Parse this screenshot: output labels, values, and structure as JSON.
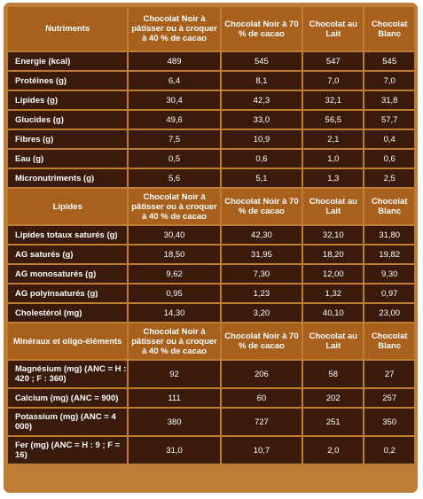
{
  "sections": [
    {
      "title": "Nutriments",
      "columns": [
        "Chocolat Noir à pâtisser ou à croquer à 40 % de cacao",
        "Chocolat Noir à 70 % de cacao",
        "Chocolat au Lait",
        "Chocolat Blanc"
      ],
      "rows": [
        {
          "label": "Energie (kcal)",
          "values": [
            "489",
            "545",
            "547",
            "545"
          ]
        },
        {
          "label": "Protéines (g)",
          "values": [
            "6,4",
            "8,1",
            "7,0",
            "7,0"
          ]
        },
        {
          "label": "Lipides (g)",
          "values": [
            "30,4",
            "42,3",
            "32,1",
            "31,8"
          ]
        },
        {
          "label": "Glucides (g)",
          "values": [
            "49,6",
            "33,0",
            "56,5",
            "57,7"
          ]
        },
        {
          "label": "Fibres (g)",
          "values": [
            "7,5",
            "10,9",
            "2,1",
            "0,4"
          ]
        },
        {
          "label": "Eau (g)",
          "values": [
            "0,5",
            "0,6",
            "1,0",
            "0,6"
          ]
        },
        {
          "label": "Micronutriments (g)",
          "values": [
            "5,6",
            "5,1",
            "1,3",
            "2,5"
          ]
        }
      ]
    },
    {
      "title": "Lipides",
      "columns": [
        "Chocolat Noir à pâtisser ou à croquer à 40 % de cacao",
        "Chocolat Noir à 70 % de cacao",
        "Chocolat au Lait",
        "Chocolat Blanc"
      ],
      "rows": [
        {
          "label": "Lipides totaux saturés (g)",
          "values": [
            "30,40",
            "42,30",
            "32,10",
            "31,80"
          ]
        },
        {
          "label": "AG saturés (g)",
          "values": [
            "18,50",
            "31,95",
            "18,20",
            "19,82"
          ]
        },
        {
          "label": "AG monosaturés (g)",
          "values": [
            "9,62",
            "7,30",
            "12,00",
            "9,30"
          ]
        },
        {
          "label": "AG polyinsaturés (g)",
          "values": [
            "0,95",
            "1,23",
            "1,32",
            "0,97"
          ]
        },
        {
          "label": "Cholestérol (mg)",
          "values": [
            "14,30",
            "3,20",
            "40,10",
            "23,00"
          ]
        }
      ]
    },
    {
      "title": "Minéraux et oligo-éléments",
      "columns": [
        "Chocolat Noir à pâtisser ou à croquer à 40 % de cacao",
        "Chocolat Noir à 70 % de cacao",
        "Chocolat au Lait",
        "Chocolat Blanc"
      ],
      "rows": [
        {
          "label": "Magnésium (mg) (ANC = H : 420 ; F : 360)",
          "values": [
            "92",
            "206",
            "58",
            "27"
          ]
        },
        {
          "label": "Calcium (mg) (ANC = 900)",
          "values": [
            "111",
            "60",
            "202",
            "257"
          ]
        },
        {
          "label": "Potassium (mg) (ANC = 4 000)",
          "values": [
            "380",
            "727",
            "251",
            "350"
          ]
        },
        {
          "label": "Fer (mg) (ANC = H : 9 ; F = 16)",
          "values": [
            "31,0",
            "10,7",
            "2,0",
            "0,2"
          ]
        }
      ]
    }
  ],
  "colors": {
    "frame": "#bd7d35",
    "header": "#a8601d",
    "cell": "#3a1a0b",
    "text": "#ffffff"
  }
}
